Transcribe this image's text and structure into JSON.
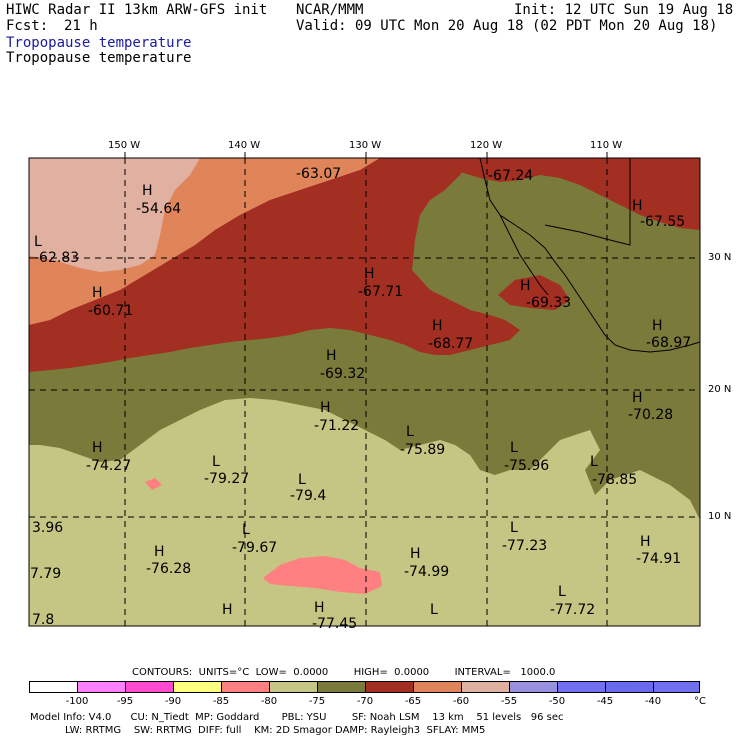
{
  "header": {
    "model": "HIWC Radar II 13km ARW-GFS init",
    "org": "NCAR/MMM",
    "fcst_label": "Fcst:",
    "fcst_value": "21 h",
    "init": "Init: 12 UTC Sun 19 Aug 18",
    "valid": "Valid: 09 UTC Mon 20 Aug 18 (02 PDT Mon 20 Aug 18)",
    "field1": "Tropopause temperature",
    "field2": "Tropopause temperature"
  },
  "axes": {
    "lon_labels": [
      "150 W",
      "140 W",
      "130 W",
      "120 W",
      "110 W"
    ],
    "lat_labels": [
      "30 N",
      "20 N",
      "10 N"
    ]
  },
  "labels": [
    {
      "t": "H",
      "v": "-54.64"
    },
    {
      "t": "",
      "v": "-63.07"
    },
    {
      "t": "",
      "v": "-67.24"
    },
    {
      "t": "H",
      "v": "-67.55"
    },
    {
      "t": "L",
      "v": "-62.83"
    },
    {
      "t": "H",
      "v": "-60.71"
    },
    {
      "t": "H",
      "v": "-67.71"
    },
    {
      "t": "H",
      "v": "-69.33"
    },
    {
      "t": "H",
      "v": "-68.77"
    },
    {
      "t": "H",
      "v": "-68.97"
    },
    {
      "t": "H",
      "v": "-69.32"
    },
    {
      "t": "H",
      "v": "-71.22"
    },
    {
      "t": "L",
      "v": "-75.89"
    },
    {
      "t": "L",
      "v": "-75.96"
    },
    {
      "t": "H",
      "v": "-70.28"
    },
    {
      "t": "H",
      "v": "-74.27"
    },
    {
      "t": "L",
      "v": "-79.27"
    },
    {
      "t": "L",
      "v": "-79.4"
    },
    {
      "t": "L",
      "v": "-78.85"
    },
    {
      "t": "",
      "v": "3.96"
    },
    {
      "t": "L",
      "v": "-79.67"
    },
    {
      "t": "L",
      "v": "-77.23"
    },
    {
      "t": "H",
      "v": "-74.91"
    },
    {
      "t": "H",
      "v": "-76.28"
    },
    {
      "t": "H",
      "v": "-74.99"
    },
    {
      "t": "",
      "v": "7.79"
    },
    {
      "t": "L",
      "v": "-77.72"
    },
    {
      "t": "H",
      "v": "-77.45"
    },
    {
      "t": "",
      "v": "7.8"
    },
    {
      "t": "H",
      "v": ""
    },
    {
      "t": "L",
      "v": ""
    }
  ],
  "contours": {
    "text": "CONTOURS:  UNITS=°C  LOW=  0.0000        HIGH=  0.0000        INTERVAL=   1000.0"
  },
  "colorbar": {
    "labels": [
      "-100",
      "-95",
      "-90",
      "-85",
      "-80",
      "-75",
      "-70",
      "-65",
      "-60",
      "-55",
      "-50",
      "-45",
      "-40",
      "°C"
    ],
    "colors": [
      "#ffffff",
      "#ff80ff",
      "#ff4ad2",
      "#ffff80",
      "#ff8080",
      "#c5c584",
      "#7a7a3a",
      "#a32e22",
      "#e0845a",
      "#e0b0a0",
      "#9a90e0",
      "#7070f0",
      "#6a6aee",
      "#7070f0"
    ]
  },
  "footer": {
    "line1": "Model Info: V4.0      CU: N_Tiedt  MP: Goddard       PBL: YSU        SF: Noah LSM    13 km    51 levels   96 sec",
    "line2": "           LW: RRTMG    SW: RRTMG  DIFF: full    KM: 2D Smagor DAMP: Rayleigh3  SFLAY: MM5"
  },
  "colors": {
    "very_light_pink": "#e0b0a0",
    "salmon": "#e0845a",
    "dark_red": "#a32e22",
    "olive": "#7a7a3a",
    "khaki": "#c5c584",
    "pink": "#ff8080"
  }
}
